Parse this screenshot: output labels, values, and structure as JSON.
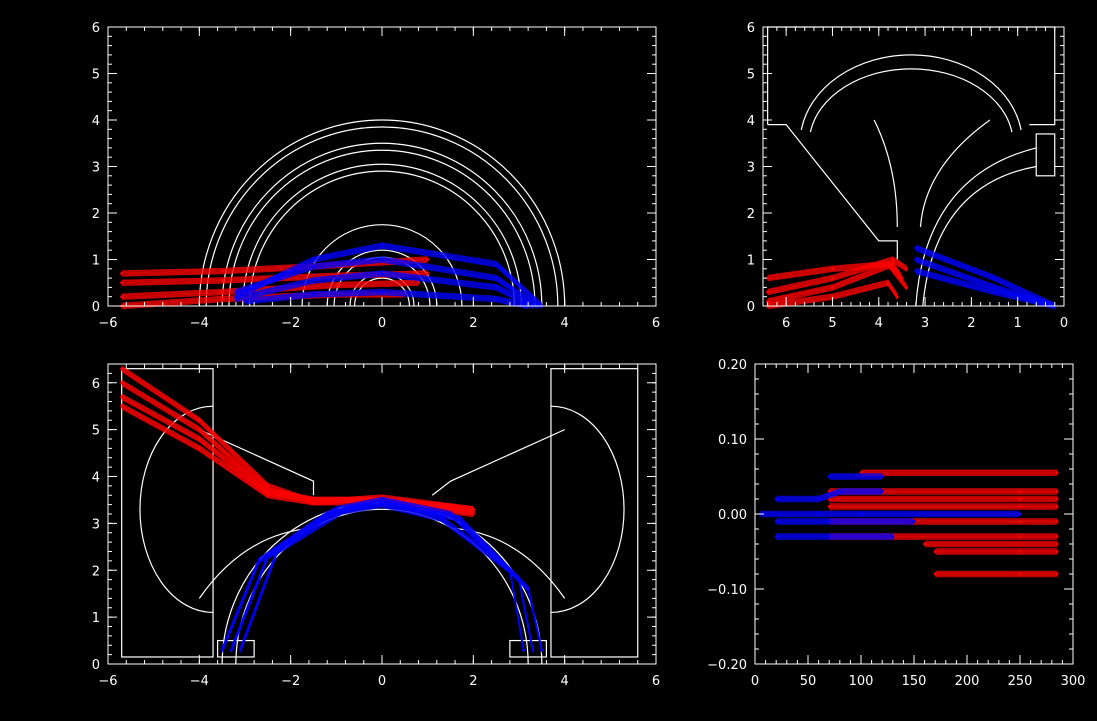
{
  "colors": {
    "background": "#000000",
    "axes": "#ffffff",
    "series_a": "#ff0000",
    "series_b": "#0000ff"
  },
  "chart_data": [
    {
      "type": "line",
      "xlim": [
        -6,
        6
      ],
      "ylim": [
        0,
        6
      ],
      "xticks": [
        -6,
        -4,
        -2,
        0,
        2,
        4,
        6
      ],
      "xtick_labels": [
        "−6",
        "−4",
        "−2",
        "0",
        "2",
        "4",
        "6"
      ],
      "yticks": [
        0,
        1,
        2,
        3,
        4,
        5,
        6
      ],
      "ytick_labels": [
        "0",
        "1",
        "2",
        "3",
        "4",
        "5",
        "6"
      ],
      "grid": false,
      "series": [
        {
          "color": "#ff0000",
          "lines": [
            [
              [
                -5.7,
                0.2
              ],
              [
                -3.5,
                0.3
              ],
              [
                -1.0,
                0.45
              ],
              [
                0.8,
                0.5
              ]
            ],
            [
              [
                -5.7,
                0.5
              ],
              [
                -3.5,
                0.55
              ],
              [
                -1.0,
                0.65
              ],
              [
                1.0,
                0.7
              ]
            ],
            [
              [
                -5.7,
                0.7
              ],
              [
                -3.5,
                0.75
              ],
              [
                -1.5,
                0.85
              ],
              [
                1.0,
                1.0
              ]
            ],
            [
              [
                -5.7,
                0.0
              ],
              [
                -3.5,
                0.15
              ],
              [
                -1.0,
                0.25
              ],
              [
                0.5,
                0.25
              ]
            ]
          ]
        },
        {
          "color": "#0000ff",
          "lines": [
            [
              [
                -3.2,
                0.2
              ],
              [
                -1.5,
                1.0
              ],
              [
                0.0,
                1.3
              ],
              [
                2.5,
                0.9
              ],
              [
                3.5,
                0.0
              ]
            ],
            [
              [
                -3.2,
                0.3
              ],
              [
                -1.5,
                0.85
              ],
              [
                0.0,
                1.0
              ],
              [
                2.5,
                0.6
              ],
              [
                3.4,
                0.0
              ]
            ],
            [
              [
                -3.2,
                0.15
              ],
              [
                -1.5,
                0.55
              ],
              [
                0.0,
                0.7
              ],
              [
                2.5,
                0.4
              ],
              [
                3.3,
                0.0
              ]
            ],
            [
              [
                -3.0,
                0.1
              ],
              [
                -1.5,
                0.25
              ],
              [
                0.0,
                0.3
              ],
              [
                2.5,
                0.15
              ],
              [
                3.2,
                0.0
              ]
            ]
          ]
        }
      ]
    },
    {
      "type": "line",
      "xlim": [
        6.5,
        0
      ],
      "ylim": [
        0,
        6
      ],
      "xticks": [
        6,
        5,
        4,
        3,
        2,
        1,
        0
      ],
      "xtick_labels": [
        "6",
        "5",
        "4",
        "3",
        "2",
        "1",
        "0"
      ],
      "yticks": [
        0,
        1,
        2,
        3,
        4,
        5,
        6
      ],
      "ytick_labels": [
        "0",
        "1",
        "2",
        "3",
        "4",
        "5",
        "6"
      ],
      "grid": false,
      "series": [
        {
          "color": "#ff0000",
          "lines": [
            [
              [
                6.4,
                0.1
              ],
              [
                5.0,
                0.4
              ],
              [
                3.7,
                0.9
              ],
              [
                3.5,
                0.6
              ]
            ],
            [
              [
                6.4,
                0.3
              ],
              [
                5.0,
                0.6
              ],
              [
                3.7,
                1.0
              ],
              [
                3.4,
                0.8
              ]
            ],
            [
              [
                6.4,
                0.6
              ],
              [
                5.0,
                0.8
              ],
              [
                3.8,
                0.9
              ],
              [
                3.4,
                0.4
              ]
            ],
            [
              [
                6.4,
                0.0
              ],
              [
                5.0,
                0.2
              ],
              [
                3.8,
                0.5
              ],
              [
                3.6,
                0.2
              ]
            ]
          ]
        },
        {
          "color": "#0000ff",
          "lines": [
            [
              [
                3.2,
                1.25
              ],
              [
                1.5,
                0.6
              ],
              [
                0.2,
                0.0
              ]
            ],
            [
              [
                3.2,
                1.0
              ],
              [
                1.5,
                0.4
              ],
              [
                0.2,
                0.0
              ]
            ],
            [
              [
                3.2,
                0.75
              ],
              [
                1.5,
                0.3
              ],
              [
                0.2,
                0.0
              ]
            ]
          ]
        }
      ]
    },
    {
      "type": "line",
      "xlim": [
        -6,
        6
      ],
      "ylim": [
        0,
        6.4
      ],
      "xticks": [
        -6,
        -4,
        -2,
        0,
        2,
        4,
        6
      ],
      "xtick_labels": [
        "−6",
        "−4",
        "−2",
        "0",
        "2",
        "4",
        "6"
      ],
      "yticks": [
        0,
        1,
        2,
        3,
        4,
        5,
        6
      ],
      "ytick_labels": [
        "0",
        "1",
        "2",
        "3",
        "4",
        "5",
        "6"
      ],
      "grid": false,
      "series": [
        {
          "color": "#ff0000",
          "lines": [
            [
              [
                -5.7,
                6.3
              ],
              [
                -4.0,
                5.2
              ],
              [
                -2.5,
                3.8
              ],
              [
                -1.5,
                3.45
              ],
              [
                0.0,
                3.45
              ],
              [
                2.0,
                3.2
              ]
            ],
            [
              [
                -5.7,
                6.0
              ],
              [
                -4.0,
                5.0
              ],
              [
                -2.5,
                3.7
              ],
              [
                -1.5,
                3.5
              ],
              [
                0.0,
                3.5
              ],
              [
                2.0,
                3.25
              ]
            ],
            [
              [
                -5.7,
                5.7
              ],
              [
                -4.0,
                4.8
              ],
              [
                -2.5,
                3.65
              ],
              [
                -1.5,
                3.5
              ],
              [
                0.0,
                3.5
              ],
              [
                2.0,
                3.3
              ]
            ],
            [
              [
                -5.7,
                5.5
              ],
              [
                -4.0,
                4.6
              ],
              [
                -2.5,
                3.6
              ],
              [
                -1.5,
                3.45
              ],
              [
                0.0,
                3.55
              ],
              [
                2.0,
                3.3
              ]
            ]
          ]
        },
        {
          "color": "#0000ff",
          "lines": [
            [
              [
                -3.3,
                0.3
              ],
              [
                -2.5,
                2.3
              ],
              [
                -1.0,
                3.3
              ],
              [
                0.0,
                3.5
              ],
              [
                1.5,
                3.2
              ],
              [
                3.0,
                1.8
              ],
              [
                3.3,
                0.3
              ]
            ],
            [
              [
                -3.5,
                0.3
              ],
              [
                -2.7,
                2.2
              ],
              [
                -1.2,
                3.2
              ],
              [
                0.0,
                3.4
              ],
              [
                1.3,
                3.1
              ],
              [
                2.8,
                2.0
              ],
              [
                3.1,
                0.3
              ]
            ],
            [
              [
                -3.1,
                0.3
              ],
              [
                -2.3,
                2.4
              ],
              [
                -0.8,
                3.3
              ],
              [
                0.0,
                3.45
              ],
              [
                1.7,
                3.1
              ],
              [
                3.2,
                1.6
              ],
              [
                3.5,
                0.3
              ]
            ]
          ]
        }
      ]
    },
    {
      "type": "line",
      "xlim": [
        0,
        300
      ],
      "ylim": [
        -0.2,
        0.2
      ],
      "xticks": [
        0,
        50,
        100,
        150,
        200,
        250,
        300
      ],
      "xtick_labels": [
        "0",
        "50",
        "100",
        "150",
        "200",
        "250",
        "300"
      ],
      "yticks": [
        -0.2,
        -0.1,
        0,
        0.1,
        0.2
      ],
      "ytick_labels": [
        "−0.20",
        "−0.10",
        "0.00",
        "0.10",
        "0.20"
      ],
      "grid": false,
      "series": [
        {
          "color": "#ff0000",
          "lines": [
            [
              [
                70,
                0.03
              ],
              [
                250,
                0.03
              ],
              [
                285,
                0.03
              ]
            ],
            [
              [
                70,
                0.02
              ],
              [
                250,
                0.02
              ],
              [
                285,
                0.02
              ]
            ],
            [
              [
                70,
                0.01
              ],
              [
                250,
                0.01
              ],
              [
                285,
                0.01
              ]
            ],
            [
              [
                70,
                -0.01
              ],
              [
                250,
                -0.01
              ],
              [
                285,
                -0.01
              ]
            ],
            [
              [
                70,
                -0.03
              ],
              [
                250,
                -0.03
              ],
              [
                285,
                -0.03
              ]
            ],
            [
              [
                170,
                -0.05
              ],
              [
                250,
                -0.05
              ],
              [
                285,
                -0.05
              ]
            ],
            [
              [
                170,
                -0.08
              ],
              [
                250,
                -0.08
              ],
              [
                285,
                -0.08
              ]
            ],
            [
              [
                100,
                0.055
              ],
              [
                285,
                0.055
              ]
            ],
            [
              [
                160,
                -0.04
              ],
              [
                285,
                -0.04
              ]
            ]
          ]
        },
        {
          "color": "#0000ff",
          "lines": [
            [
              [
                5,
                0.0
              ],
              [
                60,
                0.0
              ],
              [
                100,
                0.0
              ],
              [
                250,
                0.0
              ]
            ],
            [
              [
                20,
                -0.03
              ],
              [
                70,
                -0.03
              ],
              [
                130,
                -0.03
              ]
            ],
            [
              [
                20,
                0.02
              ],
              [
                60,
                0.02
              ],
              [
                80,
                0.03
              ],
              [
                120,
                0.03
              ]
            ],
            [
              [
                20,
                -0.01
              ],
              [
                70,
                -0.01
              ],
              [
                150,
                -0.01
              ]
            ],
            [
              [
                70,
                0.05
              ],
              [
                120,
                0.05
              ]
            ]
          ]
        }
      ]
    }
  ]
}
